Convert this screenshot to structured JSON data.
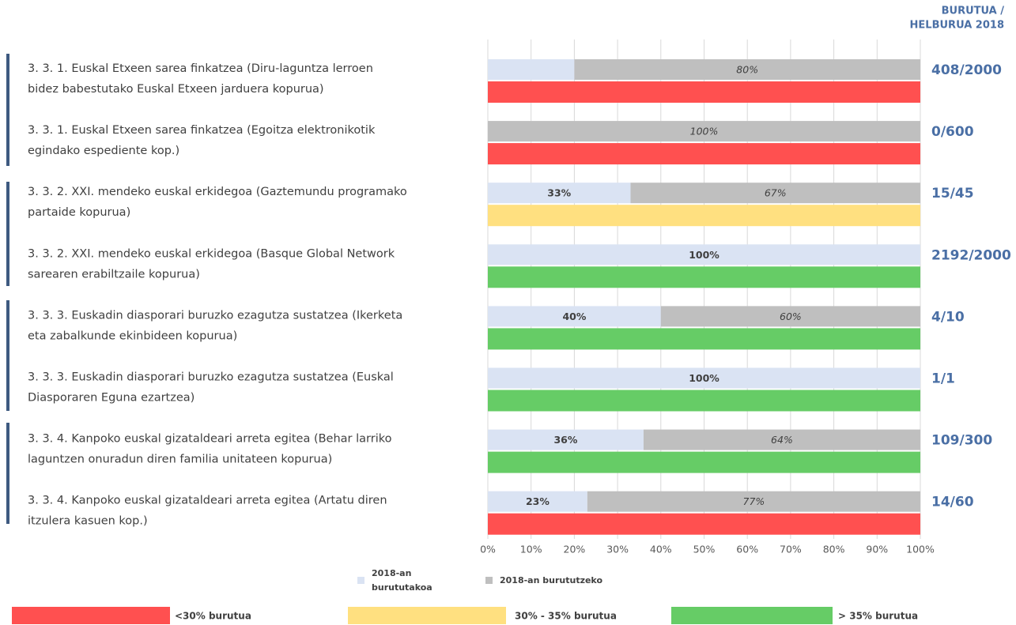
{
  "chart_data": {
    "type": "stacked_bar_horizontal",
    "ratio_header": [
      "BURUTUA /",
      "HELBURUA 2018"
    ],
    "categories": [
      [
        "3. 3. 1. Euskal Etxeen sarea finkatzea (Diru-laguntza lerroen",
        "bidez babestutako Euskal Etxeen jarduera kopurua)"
      ],
      [
        "3. 3. 1. Euskal Etxeen sarea finkatzea (Egoitza elektronikotik",
        "egindako espediente kop.)"
      ],
      [
        "3. 3. 2. XXI. mendeko euskal erkidegoa (Gaztemundu programako",
        "partaide kopurua)"
      ],
      [
        "3. 3. 2. XXI. mendeko euskal erkidegoa (Basque Global Network",
        "sarearen erabiltzaile kopurua)"
      ],
      [
        "3. 3. 3. Euskadin diasporari buruzko ezagutza sustatzea (Ikerketa",
        "eta zabalkunde ekinbideen kopurua)"
      ],
      [
        "3. 3. 3. Euskadin diasporari buruzko ezagutza sustatzea (Euskal",
        "Diasporaren Eguna ezartzea)"
      ],
      [
        "3. 3. 4. Kanpoko euskal gizataldeari arreta egitea (Behar larriko",
        "laguntzen onuradun diren familia unitateen kopurua)"
      ],
      [
        "3. 3. 4. Kanpoko euskal gizataldeari arreta egitea (Artatu diren",
        "itzulera kasuen kop.)"
      ]
    ],
    "series": [
      {
        "name": "2018-an burututakoa",
        "color": "#dae3f3",
        "values": [
          20,
          0,
          33,
          100,
          40,
          100,
          36,
          23
        ],
        "value_labels": [
          null,
          null,
          "33%",
          "100%",
          "40%",
          "100%",
          "36%",
          "23%"
        ]
      },
      {
        "name": "2018-an burututzeko",
        "color": "#bfbfbf",
        "values": [
          80,
          100,
          67,
          0,
          60,
          0,
          64,
          77
        ],
        "value_labels": [
          "80%",
          "100%",
          "67%",
          null,
          "60%",
          null,
          "64%",
          "77%"
        ]
      }
    ],
    "ratios": [
      "408/2000",
      "0/600",
      "15/45",
      "2192/2000",
      "4/10",
      "1/1",
      "109/300",
      "14/60"
    ],
    "status_legend": [
      {
        "name": "<30% burutua",
        "color": "#ff5050"
      },
      {
        "name": "30% - 35% burutua",
        "color": "#ffe080"
      },
      {
        "name": "> 35% burutua",
        "color": "#66cc66"
      }
    ],
    "status": [
      0,
      0,
      1,
      2,
      2,
      2,
      2,
      0
    ],
    "xlim": [
      0,
      100
    ],
    "xticks": [
      {
        "value": 0,
        "label": "0%"
      },
      {
        "value": 10,
        "label": "10%"
      },
      {
        "value": 20,
        "label": "20%"
      },
      {
        "value": 30,
        "label": "30%"
      },
      {
        "value": 40,
        "label": "40%"
      },
      {
        "value": 50,
        "label": "50%"
      },
      {
        "value": 60,
        "label": "60%"
      },
      {
        "value": 70,
        "label": "70%"
      },
      {
        "value": 80,
        "label": "80%"
      },
      {
        "value": 90,
        "label": "90%"
      },
      {
        "value": 100,
        "label": "100%"
      }
    ],
    "grid": true
  }
}
